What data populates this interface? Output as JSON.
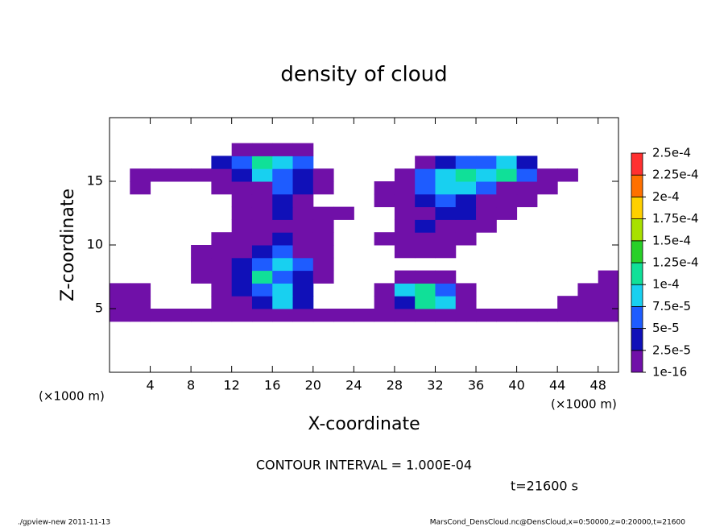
{
  "chart_data": {
    "type": "contour",
    "title": "density of cloud",
    "xlabel": "X-coordinate",
    "ylabel": "Z-coordinate",
    "x_unit_label": "(×1000 m)",
    "y_unit_label": "(×1000 m)",
    "contour_interval": "CONTOUR INTERVAL = 1.000E-04",
    "time_label": "t=21600 s",
    "footer_left": "./gpview-new   2011-11-13",
    "footer_right": "MarsCond_DensCloud.nc@DensCloud,x=0:50000,z=0:20000,t=21600",
    "xlim": [
      0,
      50
    ],
    "ylim": [
      0,
      20
    ],
    "xticks": [
      4,
      8,
      12,
      16,
      20,
      24,
      28,
      32,
      36,
      40,
      44,
      48
    ],
    "yticks": [
      5,
      10,
      15
    ],
    "x": [
      1,
      3,
      5,
      7,
      9,
      11,
      13,
      15,
      17,
      19,
      21,
      23,
      25,
      27,
      29,
      31,
      33,
      35,
      37,
      39,
      41,
      43,
      45,
      47,
      49
    ],
    "y": [
      0.5,
      1.5,
      2.5,
      3.5,
      4.5,
      5.5,
      6.5,
      7.5,
      8.5,
      9.5,
      10.5,
      11.5,
      12.5,
      13.5,
      14.5,
      15.5,
      16.5,
      17.5,
      18.5,
      19.5
    ],
    "z": [
      [
        null,
        null,
        null,
        null,
        null,
        null,
        null,
        null,
        null,
        null,
        null,
        null,
        null,
        null,
        null,
        null,
        null,
        null,
        null,
        null,
        null,
        null,
        null,
        null,
        null
      ],
      [
        null,
        null,
        null,
        null,
        null,
        null,
        null,
        null,
        null,
        null,
        null,
        null,
        null,
        null,
        null,
        null,
        null,
        null,
        null,
        null,
        null,
        null,
        null,
        null,
        null
      ],
      [
        null,
        null,
        null,
        null,
        null,
        null,
        null,
        null,
        null,
        null,
        null,
        null,
        null,
        null,
        null,
        null,
        null,
        null,
        null,
        null,
        null,
        null,
        null,
        null,
        null
      ],
      [
        null,
        null,
        null,
        null,
        null,
        null,
        null,
        null,
        null,
        null,
        null,
        null,
        null,
        null,
        null,
        null,
        null,
        null,
        null,
        null,
        null,
        null,
        null,
        null,
        null
      ],
      [
        1e-16,
        1e-16,
        1e-16,
        1e-16,
        1e-16,
        1e-16,
        1e-16,
        1e-16,
        1e-16,
        1e-16,
        1e-16,
        1e-16,
        1e-16,
        1e-16,
        1e-16,
        1e-16,
        1e-16,
        1e-16,
        1e-16,
        1e-16,
        1e-16,
        1e-16,
        1e-16,
        1e-16,
        1e-16
      ],
      [
        1e-16,
        1e-16,
        null,
        null,
        null,
        1e-16,
        1e-16,
        3e-05,
        8.5e-05,
        3e-05,
        null,
        null,
        null,
        1e-16,
        3e-05,
        0.00011,
        8.5e-05,
        1e-16,
        null,
        null,
        null,
        null,
        1e-16,
        1e-16,
        1e-16
      ],
      [
        1e-16,
        1e-16,
        null,
        null,
        null,
        1e-16,
        3e-05,
        6e-05,
        8.5e-05,
        3e-05,
        null,
        null,
        null,
        1e-16,
        8.5e-05,
        0.00011,
        6e-05,
        1e-16,
        null,
        null,
        null,
        null,
        null,
        1e-16,
        1e-16
      ],
      [
        null,
        null,
        null,
        null,
        1e-16,
        1e-16,
        3e-05,
        0.00011,
        6e-05,
        3e-05,
        1e-16,
        null,
        null,
        null,
        1e-16,
        1e-16,
        1e-16,
        null,
        null,
        null,
        null,
        null,
        null,
        null,
        1e-16
      ],
      [
        null,
        null,
        null,
        null,
        1e-16,
        1e-16,
        3e-05,
        6e-05,
        8.5e-05,
        6e-05,
        1e-16,
        null,
        null,
        null,
        null,
        null,
        null,
        null,
        null,
        null,
        null,
        null,
        null,
        null,
        null
      ],
      [
        null,
        null,
        null,
        null,
        1e-16,
        1e-16,
        1e-16,
        3e-05,
        6e-05,
        1e-16,
        1e-16,
        null,
        null,
        null,
        1e-16,
        1e-16,
        1e-16,
        null,
        null,
        null,
        null,
        null,
        null,
        null,
        null
      ],
      [
        null,
        null,
        null,
        null,
        null,
        1e-16,
        1e-16,
        1e-16,
        3e-05,
        1e-16,
        1e-16,
        null,
        null,
        1e-16,
        1e-16,
        1e-16,
        1e-16,
        1e-16,
        null,
        null,
        null,
        null,
        null,
        null,
        null
      ],
      [
        null,
        null,
        null,
        null,
        null,
        null,
        1e-16,
        1e-16,
        1e-16,
        1e-16,
        1e-16,
        null,
        null,
        null,
        1e-16,
        3e-05,
        1e-16,
        1e-16,
        1e-16,
        null,
        null,
        null,
        null,
        null,
        null
      ],
      [
        null,
        null,
        null,
        null,
        null,
        null,
        1e-16,
        1e-16,
        3e-05,
        1e-16,
        1e-16,
        1e-16,
        null,
        null,
        1e-16,
        1e-16,
        3e-05,
        3e-05,
        1e-16,
        1e-16,
        null,
        null,
        null,
        null,
        null
      ],
      [
        null,
        null,
        null,
        null,
        null,
        null,
        1e-16,
        1e-16,
        3e-05,
        1e-16,
        null,
        null,
        null,
        1e-16,
        1e-16,
        3e-05,
        6e-05,
        3e-05,
        1e-16,
        1e-16,
        1e-16,
        null,
        null,
        null,
        null
      ],
      [
        null,
        1e-16,
        null,
        null,
        null,
        1e-16,
        1e-16,
        1e-16,
        6e-05,
        3e-05,
        1e-16,
        null,
        null,
        1e-16,
        1e-16,
        6e-05,
        8.5e-05,
        8.5e-05,
        6e-05,
        1e-16,
        1e-16,
        1e-16,
        null,
        null,
        null
      ],
      [
        null,
        1e-16,
        1e-16,
        1e-16,
        1e-16,
        1e-16,
        3e-05,
        8.5e-05,
        6e-05,
        3e-05,
        1e-16,
        null,
        null,
        null,
        1e-16,
        6e-05,
        8.5e-05,
        0.00011,
        8.5e-05,
        0.00011,
        6e-05,
        1e-16,
        1e-16,
        null,
        null
      ],
      [
        null,
        null,
        null,
        null,
        null,
        3e-05,
        6e-05,
        0.00011,
        8.5e-05,
        6e-05,
        null,
        null,
        null,
        null,
        null,
        1e-16,
        3e-05,
        6e-05,
        6e-05,
        8.5e-05,
        3e-05,
        null,
        null,
        null,
        null
      ],
      [
        null,
        null,
        null,
        null,
        null,
        null,
        1e-16,
        1e-16,
        1e-16,
        1e-16,
        null,
        null,
        null,
        null,
        null,
        null,
        null,
        null,
        null,
        null,
        null,
        null,
        null,
        null,
        null
      ],
      [
        null,
        null,
        null,
        null,
        null,
        null,
        null,
        null,
        null,
        null,
        null,
        null,
        null,
        null,
        null,
        null,
        null,
        null,
        null,
        null,
        null,
        null,
        null,
        null,
        null
      ],
      [
        null,
        null,
        null,
        null,
        null,
        null,
        null,
        null,
        null,
        null,
        null,
        null,
        null,
        null,
        null,
        null,
        null,
        null,
        null,
        null,
        null,
        null,
        null,
        null,
        null
      ]
    ],
    "colorbar": {
      "levels": [
        {
          "value": 1e-16,
          "label": "1e-16"
        },
        {
          "value": 2.5e-05,
          "label": "2.5e-5"
        },
        {
          "value": 5e-05,
          "label": "5e-5"
        },
        {
          "value": 7.5e-05,
          "label": "7.5e-5"
        },
        {
          "value": 0.0001,
          "label": "1e-4"
        },
        {
          "value": 0.000125,
          "label": "1.25e-4"
        },
        {
          "value": 0.00015,
          "label": "1.5e-4"
        },
        {
          "value": 0.000175,
          "label": "1.75e-4"
        },
        {
          "value": 0.0002,
          "label": "2e-4"
        },
        {
          "value": 0.000225,
          "label": "2.25e-4"
        },
        {
          "value": 0.00025,
          "label": "2.5e-4"
        }
      ],
      "colors": [
        "#7010a8",
        "#1010b8",
        "#1e5cff",
        "#18d0f0",
        "#10e098",
        "#28d028",
        "#a8e000",
        "#ffd000",
        "#ff7000",
        "#ff3030"
      ]
    }
  }
}
